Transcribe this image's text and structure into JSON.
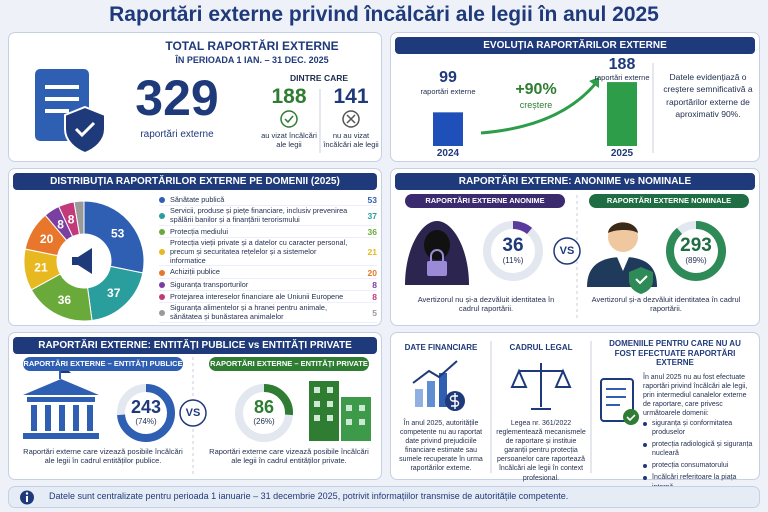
{
  "title": "Raportări externe privind încălcări ale legii în anul 2025",
  "total": {
    "heading": "TOTAL RAPORTĂRI EXTERNE",
    "period": "ÎN PERIOADA 1 IAN. – 31 DEC. 2025",
    "value": 329,
    "value_label": "raportări externe",
    "of_which": "DINTRE CARE",
    "breakdown": [
      {
        "value": 188,
        "label": "au vizat încălcări ale legii"
      },
      {
        "value": 141,
        "label": "nu au vizat încălcări ale legii"
      }
    ]
  },
  "evolution": {
    "heading": "EVOLUȚIA RAPORTĂRILOR EXTERNE",
    "bars": [
      {
        "year": "2024",
        "value": 99,
        "value_label": "raportări externe",
        "color": "#1f4fb8"
      },
      {
        "year": "2025",
        "value": 188,
        "value_label": "raportări externe",
        "color": "#2e9d4a"
      }
    ],
    "growth": "+90%",
    "growth_label": "creștere",
    "note": "Datele evidențiază o creștere semnificativă a raportărilor externe de aproximativ 90%."
  },
  "distribution": {
    "heading": "DISTRIBUȚIA RAPORTĂRILOR EXTERNE PE DOMENII (2025)",
    "domains": [
      {
        "name": "Sănătate publică",
        "value": 53,
        "color": "#2f5fb3"
      },
      {
        "name": "Servicii, produse și piețe financiare, inclusiv prevenirea spălării banilor și a finanțării terorismului",
        "value": 37,
        "color": "#2a9d9d"
      },
      {
        "name": "Protecția mediului",
        "value": 36,
        "color": "#6aaa3a"
      },
      {
        "name": "Protecția vieții private și a datelor cu caracter personal, precum și securitatea rețelelor și a sistemelor informatice",
        "value": 21,
        "color": "#e8b820"
      },
      {
        "name": "Achiziții publice",
        "value": 20,
        "color": "#e8762b"
      },
      {
        "name": "Siguranța transporturilor",
        "value": 8,
        "color": "#7a3fa0"
      },
      {
        "name": "Protejarea intereselor financiare ale Uniunii Europene",
        "value": 8,
        "color": "#c23a7a"
      },
      {
        "name": "Siguranța alimentelor și a hranei pentru animale, sănătatea și bunăstarea animalelor",
        "value": 5,
        "color": "#9a9a9a"
      }
    ]
  },
  "anonymity": {
    "heading": "RAPORTĂRI EXTERNE: ANONIME vs NOMINALE",
    "vs_label": "VS",
    "anonymous": {
      "label": "RAPORTĂRI EXTERNE ANONIME",
      "value": 36,
      "share_label": "(11%)",
      "caption": "Avertizorul nu și-a dezvăluit identitatea în cadrul raportării.",
      "color": "#5b3a9e"
    },
    "nominal": {
      "label": "RAPORTĂRI EXTERNE NOMINALE",
      "value": 293,
      "share_label": "(89%)",
      "caption": "Avertizorul și-a dezvăluit identitatea în cadrul raportării.",
      "color": "#2e8b57"
    }
  },
  "entities": {
    "heading": "RAPORTĂRI EXTERNE: ENTITĂȚI PUBLICE vs ENTITĂȚI PRIVATE",
    "vs_label": "VS",
    "public": {
      "label": "RAPORTĂRI EXTERNE – ENTITĂȚI PUBLICE",
      "value": 243,
      "share_label": "(74%)",
      "caption": "Raportări externe care vizează posibile încălcări ale legii în cadrul entităților publice.",
      "color": "#2f5fb3"
    },
    "private": {
      "label": "RAPORTĂRI EXTERNE – ENTITĂȚI PRIVATE",
      "value": 86,
      "share_label": "(26%)",
      "caption": "Raportări externe care vizează posibile încălcări ale legii în cadrul entităților private.",
      "color": "#2e7d32"
    }
  },
  "info": {
    "financial": {
      "title": "DATE FINANCIARE",
      "text": "În anul 2025, autoritățile competente nu au raportat date privind prejudiciile financiare estimate sau sumele recuperate în urma raportărilor externe."
    },
    "legal": {
      "title": "CADRUL LEGAL",
      "text": "Legea nr. 361/2022 reglementează mecanismele de raportare și instituie garanții pentru protecția persoanelor care raportează încălcări ale legii în context profesional."
    },
    "no_reports": {
      "title": "DOMENIILE PENTRU CARE NU AU FOST EFECTUATE RAPORTĂRI EXTERNE",
      "text": "În anul 2025 nu au fost efectuate raportări privind încălcări ale legii, prin intermediul canalelor externe de raportare, care privesc următoarele domenii:",
      "items": [
        "siguranța și conformitatea produselor",
        "protecția radiologică și siguranța nucleară",
        "protecția consumatorului",
        "încălcări referitoare la piața internă"
      ]
    }
  },
  "footer": "Datele sunt centralizate pentru perioada 1 ianuarie – 31 decembrie 2025, potrivit informațiilor transmise de autoritățile competente."
}
